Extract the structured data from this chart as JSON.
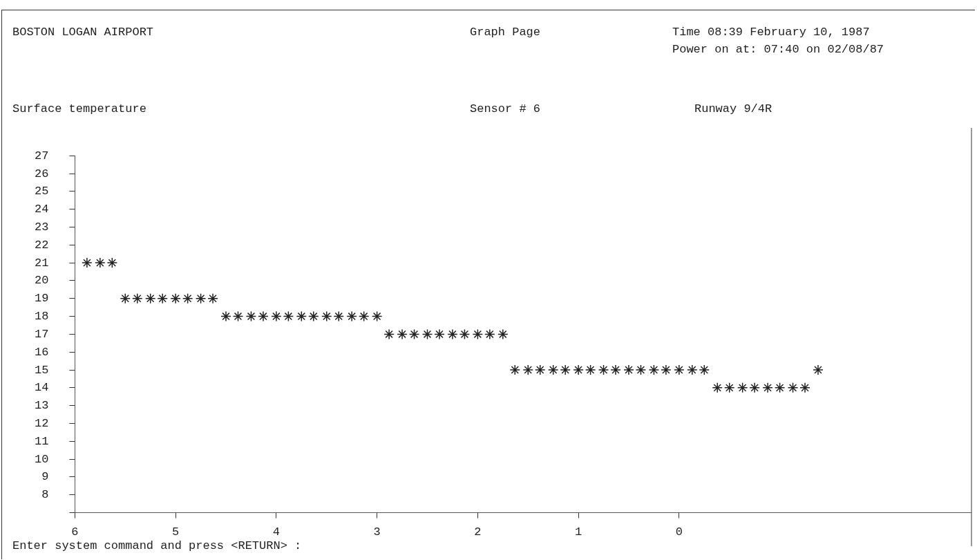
{
  "chart_data": {
    "type": "scatter",
    "title": "BOSTON LOGAN AIRPORT",
    "ylabel": "Surface temperature",
    "annotations": [
      "Graph Page",
      "Time 08:39 February 10, 1987",
      "Power on at: 07:40 on 02/08/87",
      "Sensor # 6",
      "Runway 9/4R",
      "Enter system command and press <RETURN> :"
    ],
    "x": [
      5.88,
      5.75,
      5.63,
      5.5,
      5.38,
      5.25,
      5.13,
      5.0,
      4.88,
      4.75,
      4.63,
      4.5,
      4.38,
      4.25,
      4.13,
      4.0,
      3.88,
      3.75,
      3.63,
      3.5,
      3.38,
      3.25,
      3.13,
      3.0,
      2.88,
      2.75,
      2.63,
      2.5,
      2.38,
      2.25,
      2.13,
      2.0,
      1.88,
      1.75,
      1.63,
      1.5,
      1.38,
      1.25,
      1.13,
      1.0,
      0.88,
      0.75,
      0.63,
      0.5,
      0.38,
      0.25,
      0.13,
      0,
      -0.13,
      -0.25,
      -0.38,
      -0.5,
      -0.63,
      -0.75,
      -0.88,
      -1.0,
      -1.13,
      -1.25,
      -1.38
    ],
    "values": [
      21,
      21,
      21,
      19,
      19,
      19,
      19,
      19,
      19,
      19,
      19,
      18,
      18,
      18,
      18,
      18,
      18,
      18,
      18,
      18,
      18,
      18,
      18,
      18,
      17,
      17,
      17,
      17,
      17,
      17,
      17,
      17,
      17,
      17,
      15,
      15,
      15,
      15,
      15,
      15,
      15,
      15,
      15,
      15,
      15,
      15,
      15,
      15,
      15,
      15,
      14,
      14,
      14,
      14,
      14,
      14,
      14,
      14,
      15
    ],
    "color": "#222222",
    "marker": "cross",
    "grid": false,
    "legend": false,
    "xlim": [
      6,
      -2.9
    ],
    "xticks": [
      6,
      5,
      4,
      3,
      2,
      1,
      0
    ],
    "ylim": [
      7,
      27
    ],
    "yticks": [
      {
        "value": 7,
        "label": null
      },
      8,
      9,
      10,
      11,
      12,
      13,
      14,
      15,
      16,
      17,
      18,
      19,
      20,
      21,
      22,
      23,
      24,
      25,
      26,
      27
    ]
  }
}
